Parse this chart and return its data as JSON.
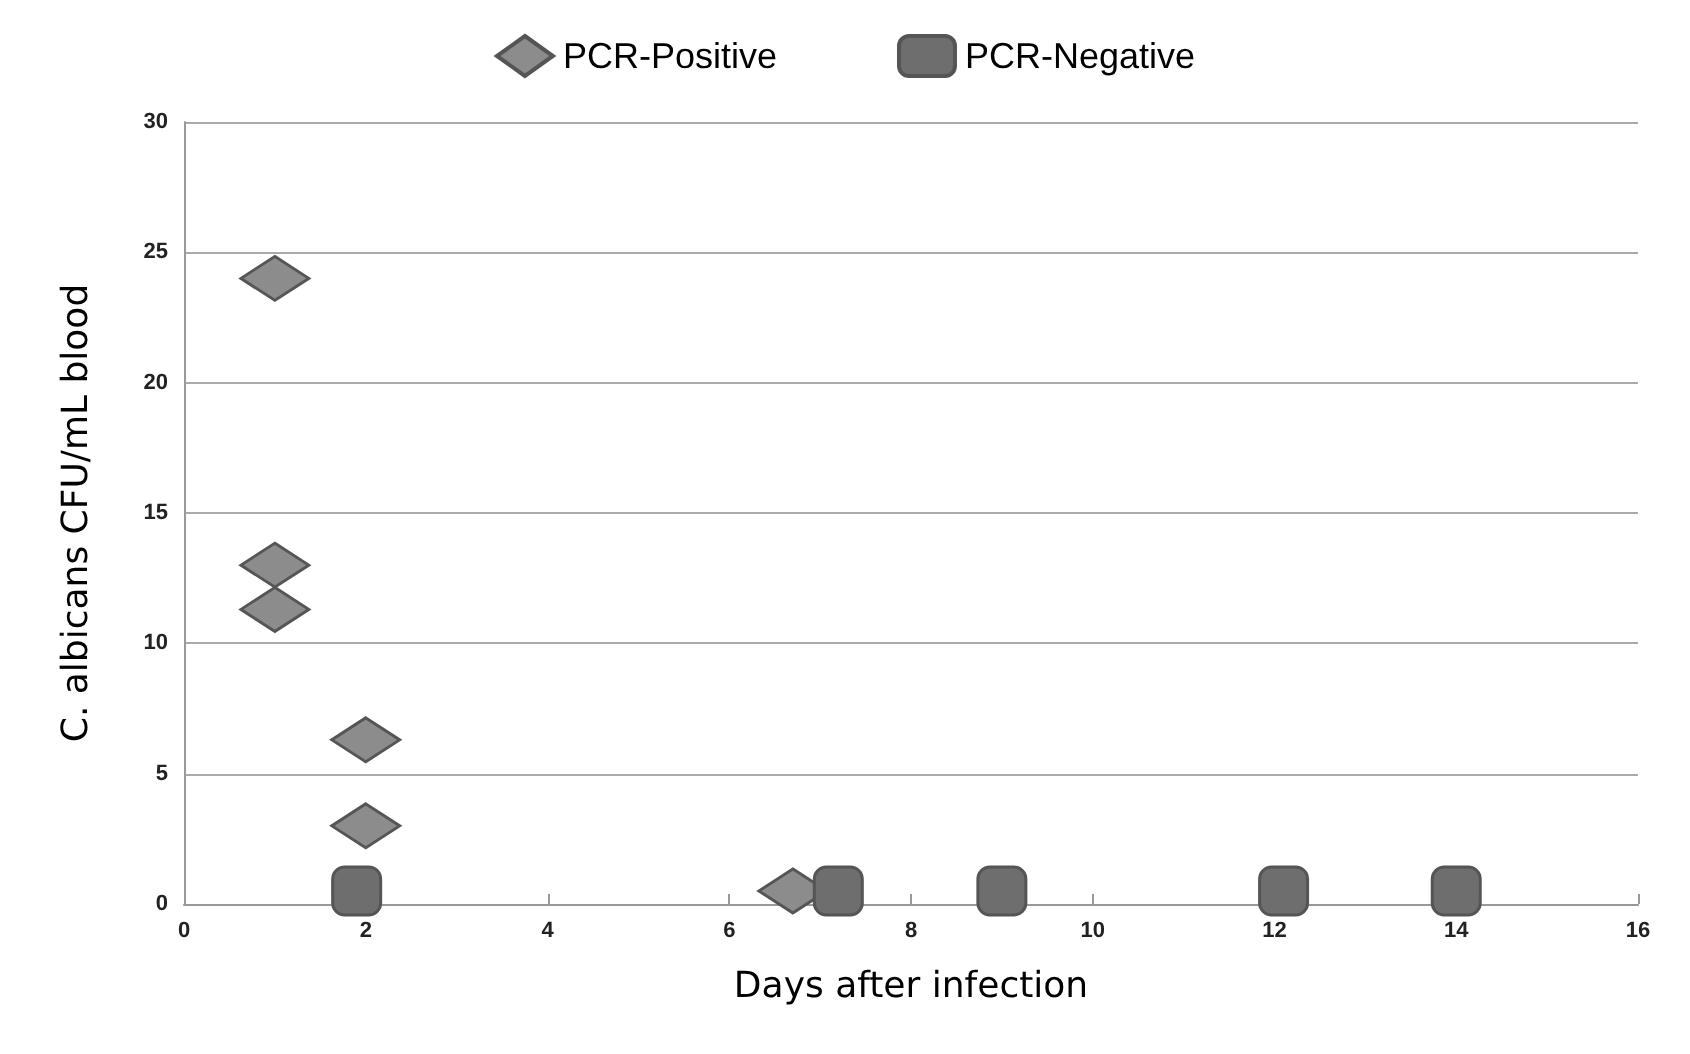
{
  "chart_data": {
    "type": "scatter",
    "xlabel": "Days after infection",
    "ylabel": "C. albicans CFU/mL blood",
    "xlim": [
      0,
      16
    ],
    "xticks": [
      0,
      2,
      4,
      6,
      8,
      10,
      12,
      14,
      16
    ],
    "ylim": [
      0,
      30
    ],
    "yticks": [
      0,
      5,
      10,
      15,
      20,
      25,
      30
    ],
    "grid": "y",
    "legend": "top",
    "series": [
      {
        "name": "PCR-Positive",
        "color": "#8c8c8c",
        "marker": "diamond",
        "x": [
          1,
          1,
          1,
          2,
          2,
          6.7
        ],
        "values": [
          24,
          13,
          11.3,
          6.3,
          3,
          0.5
        ]
      },
      {
        "name": "PCR-Negative",
        "color": "#6e6e6e",
        "marker": "square",
        "x": [
          1.9,
          7.2,
          9,
          12.1,
          14
        ],
        "values": [
          0.5,
          0.5,
          0.5,
          0.5,
          0.5
        ]
      }
    ]
  }
}
